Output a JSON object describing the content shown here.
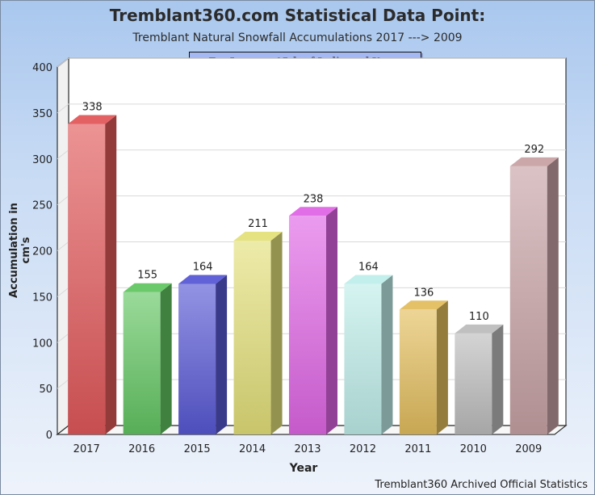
{
  "chart_data": {
    "type": "bar",
    "title": "Tremblant360.com Statistical Data Point:",
    "subtitle": "Tremblant Natural Snowfall Accumulations 2017 ---> 2009",
    "note": "For January 15th of Indicated Years",
    "xlabel": "Year",
    "ylabel": "Accumulation in cm's",
    "footer": "Tremblant360 Archived Official Statistics",
    "categories": [
      "2017",
      "2016",
      "2015",
      "2014",
      "2013",
      "2012",
      "2011",
      "2010",
      "2009"
    ],
    "values": [
      338,
      155,
      164,
      211,
      238,
      164,
      136,
      110,
      292
    ],
    "ylim": [
      0,
      400
    ],
    "yticks": [
      "0",
      "50",
      "100",
      "150",
      "200",
      "250",
      "300",
      "350",
      "400"
    ],
    "grid": true,
    "legend": "none",
    "colors": [
      "#e2595b",
      "#63c663",
      "#5959d6",
      "#e3e07a",
      "#e066e6",
      "#bfeeea",
      "#e3be5e",
      "#bdbdbd",
      "#c8a2a5"
    ]
  }
}
